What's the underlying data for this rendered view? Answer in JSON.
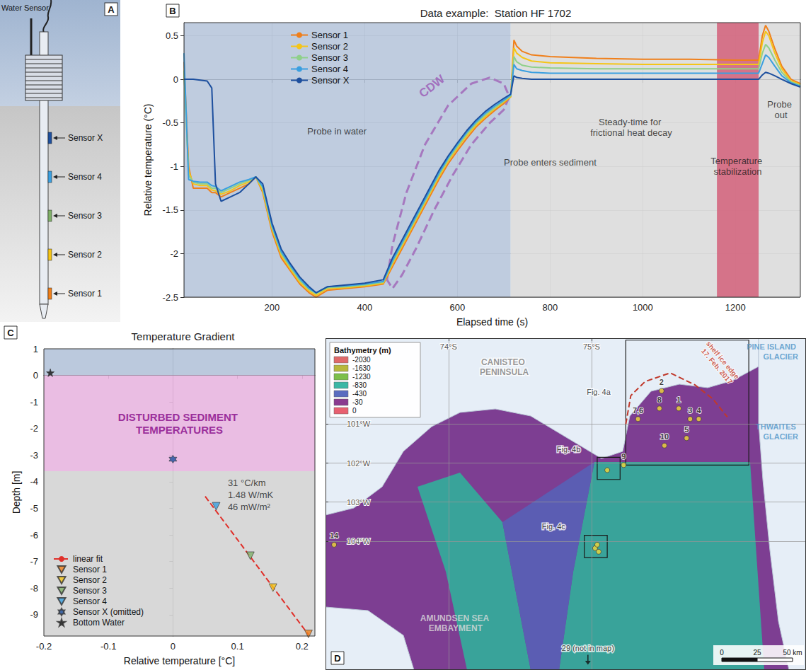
{
  "diagram": {
    "panel": "A",
    "water_sensor": "Water Sensor",
    "sensors": [
      {
        "name": "Sensor X",
        "color": "#1d4f9e"
      },
      {
        "name": "Sensor 4",
        "color": "#3a9fe0"
      },
      {
        "name": "Sensor 3",
        "color": "#7fb069"
      },
      {
        "name": "Sensor 2",
        "color": "#f5c518"
      },
      {
        "name": "Sensor 1",
        "color": "#f07f1a"
      }
    ]
  },
  "chart_data": [
    {
      "panel": "B",
      "type": "line",
      "title": "Data example:  Station HF 1702",
      "x_label": "Elapsed time (s)",
      "y_label": "Relative temperature (°C)",
      "xlim": [
        10,
        1340
      ],
      "xticks": [
        200,
        400,
        600,
        800,
        1000,
        1200
      ],
      "ylim": [
        -2.5,
        0.65
      ],
      "yticks": [
        -2.5,
        -2,
        -1.5,
        -1,
        -0.5,
        0,
        0.5
      ],
      "grid": true,
      "legend": "upper left",
      "x": [
        10,
        20,
        30,
        45,
        60,
        70,
        78,
        90,
        110,
        130,
        150,
        165,
        180,
        200,
        220,
        240,
        260,
        280,
        295,
        320,
        360,
        400,
        440,
        460,
        480,
        500,
        520,
        540,
        560,
        580,
        600,
        620,
        640,
        660,
        680,
        700,
        715,
        722,
        728,
        740,
        760,
        800,
        900,
        1000,
        1100,
        1200,
        1250,
        1258,
        1265,
        1272,
        1285,
        1300,
        1320,
        1340
      ],
      "series": [
        {
          "name": "Sensor 1",
          "color": "#f07f1a",
          "values": [
            0.2,
            -1.0,
            -1.25,
            -1.25,
            -1.25,
            -1.3,
            -1.3,
            -1.35,
            -1.3,
            -1.25,
            -1.2,
            -1.12,
            -1.3,
            -1.75,
            -2.05,
            -2.2,
            -2.35,
            -2.45,
            -2.5,
            -2.42,
            -2.4,
            -2.38,
            -2.35,
            -2.15,
            -1.95,
            -1.75,
            -1.55,
            -1.35,
            -1.15,
            -0.97,
            -0.82,
            -0.68,
            -0.55,
            -0.45,
            -0.36,
            -0.28,
            -0.2,
            0.45,
            0.38,
            0.32,
            0.28,
            0.26,
            0.24,
            0.23,
            0.23,
            0.22,
            0.22,
            0.5,
            0.62,
            0.55,
            0.35,
            0.15,
            0.0,
            -0.05
          ]
        },
        {
          "name": "Sensor 2",
          "color": "#f5c518",
          "values": [
            0.1,
            -1.05,
            -1.2,
            -1.22,
            -1.22,
            -1.27,
            -1.28,
            -1.32,
            -1.28,
            -1.22,
            -1.18,
            -1.12,
            -1.28,
            -1.72,
            -2.02,
            -2.18,
            -2.33,
            -2.43,
            -2.48,
            -2.4,
            -2.39,
            -2.37,
            -2.34,
            -2.12,
            -1.92,
            -1.72,
            -1.52,
            -1.32,
            -1.12,
            -0.94,
            -0.79,
            -0.65,
            -0.53,
            -0.43,
            -0.34,
            -0.26,
            -0.2,
            0.36,
            0.3,
            0.25,
            0.21,
            0.19,
            0.18,
            0.17,
            0.17,
            0.17,
            0.17,
            0.42,
            0.55,
            0.5,
            0.3,
            0.12,
            -0.02,
            -0.06
          ]
        },
        {
          "name": "Sensor 3",
          "color": "#8fd08a",
          "values": [
            0.1,
            -1.1,
            -1.18,
            -1.2,
            -1.2,
            -1.25,
            -1.25,
            -1.3,
            -1.25,
            -1.2,
            -1.16,
            -1.12,
            -1.25,
            -1.7,
            -2.0,
            -2.16,
            -2.31,
            -2.41,
            -2.46,
            -2.39,
            -2.38,
            -2.36,
            -2.33,
            -2.1,
            -1.9,
            -1.7,
            -1.5,
            -1.3,
            -1.1,
            -0.92,
            -0.77,
            -0.63,
            -0.51,
            -0.41,
            -0.33,
            -0.25,
            -0.19,
            0.26,
            0.2,
            0.16,
            0.14,
            0.13,
            0.12,
            0.12,
            0.12,
            0.12,
            0.12,
            0.3,
            0.4,
            0.36,
            0.22,
            0.08,
            -0.03,
            -0.07
          ]
        },
        {
          "name": "Sensor 4",
          "color": "#3a9fe0",
          "values": [
            0.3,
            -1.15,
            -1.17,
            -1.18,
            -1.18,
            -1.22,
            -1.23,
            -1.28,
            -1.23,
            -1.18,
            -1.15,
            -1.12,
            -1.23,
            -1.68,
            -1.98,
            -2.14,
            -2.29,
            -2.4,
            -2.45,
            -2.38,
            -2.37,
            -2.35,
            -2.32,
            -2.08,
            -1.88,
            -1.68,
            -1.48,
            -1.28,
            -1.08,
            -0.9,
            -0.75,
            -0.61,
            -0.49,
            -0.39,
            -0.31,
            -0.24,
            -0.18,
            0.17,
            0.12,
            0.1,
            0.08,
            0.07,
            0.07,
            0.07,
            0.07,
            0.07,
            0.07,
            0.18,
            0.28,
            0.25,
            0.15,
            0.04,
            -0.04,
            -0.08
          ]
        },
        {
          "name": "Sensor X",
          "color": "#1d4f9e",
          "values": [
            0.0,
            0.0,
            0.0,
            -0.01,
            -0.02,
            -0.1,
            -1.2,
            -1.4,
            -1.35,
            -1.3,
            -1.2,
            -1.12,
            -1.2,
            -1.65,
            -1.95,
            -2.12,
            -2.27,
            -2.38,
            -2.45,
            -2.38,
            -2.36,
            -2.34,
            -2.3,
            -2.05,
            -1.85,
            -1.65,
            -1.45,
            -1.25,
            -1.05,
            -0.88,
            -0.73,
            -0.59,
            -0.47,
            -0.37,
            -0.29,
            -0.22,
            -0.17,
            0.04,
            0.02,
            0.01,
            0.0,
            0.0,
            0.0,
            0.0,
            0.0,
            0.0,
            0.0,
            0.05,
            0.08,
            0.07,
            0.04,
            0.0,
            -0.05,
            -0.09
          ]
        }
      ],
      "regions": [
        {
          "x": [
            10,
            715
          ],
          "color": "#b4c3d9"
        },
        {
          "x": [
            715,
            1340
          ],
          "color": "#d9d9d9"
        },
        {
          "x": [
            1160,
            1250
          ],
          "color": "#d4607a"
        }
      ],
      "cdw_outline": {
        "color": "#a678bf",
        "line_style": "dashed",
        "x": [
          448,
          460,
          490,
          530,
          580,
          630,
          670,
          700,
          712,
          700,
          670,
          630,
          590,
          550,
          510,
          480,
          460,
          448
        ],
        "y": [
          -2.3,
          -1.9,
          -1.3,
          -0.75,
          -0.3,
          -0.05,
          0.02,
          -0.05,
          -0.2,
          -0.35,
          -0.5,
          -0.75,
          -1.1,
          -1.5,
          -1.95,
          -2.25,
          -2.4,
          -2.3
        ]
      },
      "annotations": [
        {
          "text": "CDW",
          "x": 545,
          "y": -0.08,
          "color": "#9b59b6"
        },
        {
          "text": "Probe in water",
          "x": 340,
          "y": -0.6
        },
        {
          "text": "Probe enters sediment",
          "x": 800,
          "y": -0.95
        },
        {
          "text": "Steady-time for frictional heat decay",
          "x": 975,
          "y": -0.55
        },
        {
          "text": "Temperature stabilization",
          "x": 1205,
          "y": -1.0
        },
        {
          "text": "Probe out",
          "x": 1298,
          "y": -0.35
        }
      ]
    },
    {
      "panel": "C",
      "type": "scatter",
      "title": "Temperature Gradient",
      "x_label": "Relative temperature [°C]",
      "y_label": "Depth [m]",
      "xlim": [
        -0.2,
        0.22
      ],
      "xticks": [
        -0.2,
        -0.1,
        0,
        0.1,
        0.2
      ],
      "ylim": [
        -9.8,
        1
      ],
      "yticks": [
        -9,
        -8,
        -7,
        -6,
        -5,
        -4,
        -3,
        -2,
        -1,
        0,
        1
      ],
      "grid": false,
      "legend": "lower left",
      "series": [
        {
          "name": "linear fit",
          "type": "line",
          "line_style": "dashed",
          "color": "#e0302a",
          "x": [
            0.05,
            0.21
          ],
          "y": [
            -4.55,
            -9.75
          ]
        },
        {
          "name": "Sensor 1",
          "color": "#f07f1a",
          "marker": "triangle-down",
          "x": [
            0.21
          ],
          "y": [
            -9.72
          ]
        },
        {
          "name": "Sensor 2",
          "color": "#f5c518",
          "marker": "triangle-down",
          "x": [
            0.155
          ],
          "y": [
            -7.98
          ]
        },
        {
          "name": "Sensor 3",
          "color": "#7fb069",
          "marker": "triangle-down",
          "x": [
            0.12
          ],
          "y": [
            -6.78
          ]
        },
        {
          "name": "Sensor 4",
          "color": "#3a9fe0",
          "marker": "triangle-down",
          "x": [
            0.067
          ],
          "y": [
            -4.92
          ]
        },
        {
          "name": "Sensor X (omitted)",
          "color": "#1d4f9e",
          "marker": "hexagram",
          "x": [
            0
          ],
          "y": [
            -3.15
          ]
        },
        {
          "name": "Bottom Water",
          "color": "#111111",
          "marker": "star",
          "x": [
            -0.19
          ],
          "y": [
            0.1
          ]
        }
      ],
      "zones": [
        {
          "y": [
            0,
            1
          ],
          "color": "#b4c3d9"
        },
        {
          "label": "DISTURBED SEDIMENT TEMPERATURES",
          "y": [
            -3.6,
            0
          ],
          "color": "#e8b6e0"
        },
        {
          "y": [
            -9.8,
            -3.6
          ],
          "color": "#d4d4d4"
        }
      ],
      "annotations": [
        {
          "text": "31 °C/km",
          "x": 0.085,
          "y": -4.05
        },
        {
          "text": "1.48 W/mK",
          "x": 0.085,
          "y": -4.5
        },
        {
          "text": "46 mW/m²",
          "x": 0.085,
          "y": -4.95
        }
      ]
    },
    {
      "panel": "D",
      "type": "map",
      "xlim": [
        73.14,
        76.5
      ],
      "ylim": [
        107.3,
        98.8
      ],
      "xticks": [
        {
          "value": 74,
          "label": "74°S"
        },
        {
          "value": 75,
          "label": "75°S"
        }
      ],
      "yticks": [
        {
          "value": 101,
          "label": "101°W"
        },
        {
          "value": 102,
          "label": "102°W"
        },
        {
          "value": 103,
          "label": "103°W"
        },
        {
          "value": 104,
          "label": "104°W"
        }
      ],
      "grid": true,
      "colorbar": {
        "title": "Bathymetry (m)",
        "levels": [
          {
            "value": -2030,
            "color": "#e06a6a"
          },
          {
            "value": -1630,
            "color": "#b8b83c"
          },
          {
            "value": -1230,
            "color": "#7cbf4a"
          },
          {
            "value": -830,
            "color": "#3ab7a5"
          },
          {
            "value": -430,
            "color": "#5a6cc0"
          },
          {
            "value": -30,
            "color": "#8a3a8f"
          },
          {
            "value": 0,
            "color": "#e86070"
          }
        ]
      },
      "points": {
        "color": "#f2d838",
        "x": [
          75.49,
          75.475,
          75.61,
          75.69,
          75.75,
          75.325,
          75.665,
          75.51,
          75.225,
          75.11,
          75.025,
          75.04,
          75.05,
          73.2
        ],
        "y": [
          100.15,
          100.6,
          100.6,
          100.87,
          100.87,
          100.87,
          101.36,
          101.55,
          102.05,
          102.18,
          104.18,
          104.09,
          104.27,
          104.09
        ],
        "labels": [
          "2",
          "8",
          "1",
          "3",
          "4",
          "7,6",
          "5",
          "10",
          "9",
          null,
          null,
          null,
          null,
          "14"
        ]
      },
      "shelf_ice_edge": {
        "label": "shelf ice edge 17. Feb. 2017",
        "label_x": 75.9,
        "label_y": 99.45,
        "color": "#c0392b",
        "line_style": "dashed",
        "x": [
          75.24,
          75.275,
          75.375,
          75.55,
          75.725,
          75.85,
          75.95
        ],
        "y": [
          101.0,
          100.27,
          99.91,
          99.69,
          100.0,
          100.36,
          100.82
        ]
      },
      "boxes": [
        {
          "x": [
            75.24,
            76.1
          ],
          "y": [
            98.85,
            102.05
          ]
        },
        {
          "x": [
            75.04,
            75.2
          ],
          "y": [
            101.85,
            102.42
          ]
        },
        {
          "x": [
            74.95,
            75.11
          ],
          "y": [
            103.85,
            104.42
          ]
        }
      ],
      "annotations": [
        {
          "text": "CANISTEO PENINSULA",
          "x": 74.39,
          "y": 99.55,
          "color": "#7d7d7d"
        },
        {
          "text": "PINE ISLAND GLACIER",
          "x": 76.47,
          "y": 99.15,
          "color": "#4d94c8"
        },
        {
          "text": "THWAITES GLACIER",
          "x": 76.47,
          "y": 101.2,
          "color": "#4d94c8"
        },
        {
          "text": "AMUNDSEN SEA EMBAYMENT",
          "x": 74.05,
          "y": 106.1,
          "color": "#dcdcdc"
        },
        {
          "text": "Fig. 4a",
          "x": 75.05,
          "y": 100.18,
          "color": "#111111"
        },
        {
          "text": "Fig. 4b",
          "x": 74.84,
          "y": 101.64,
          "color": "#111111"
        },
        {
          "text": "Fig. 4c",
          "x": 74.735,
          "y": 103.62,
          "color": "#111111"
        },
        {
          "text": "29 (not in map)",
          "x": 74.975,
          "y": 106.73,
          "color": "#111111",
          "marker": "arrow-down"
        }
      ],
      "scale_bar": {
        "labels": [
          "0",
          "25",
          "50 km"
        ]
      }
    }
  ]
}
